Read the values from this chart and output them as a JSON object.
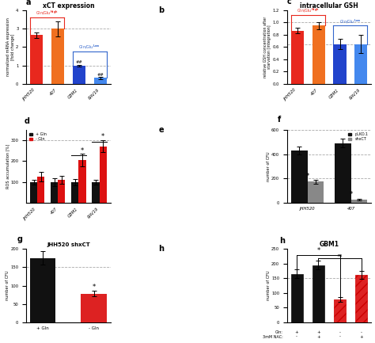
{
  "panel_a": {
    "title": "xCT expression",
    "ylabel": "normalized mRNA expression\n[fold change]",
    "categories": [
      "JHH520",
      "407",
      "GBM1",
      "RAV19"
    ],
    "values": [
      2.65,
      3.0,
      1.0,
      0.32
    ],
    "errors": [
      0.15,
      0.4,
      0.05,
      0.07
    ],
    "colors": [
      "#e8281e",
      "#f07020",
      "#2244cc",
      "#4488ee"
    ],
    "ylim": [
      0,
      4
    ],
    "yticks": [
      0,
      1,
      2,
      3,
      4
    ],
    "dashed_line_high": 3.0,
    "dashed_line_low": 1.0,
    "panel_label": "a"
  },
  "panel_c": {
    "title": "intracellular GSH",
    "ylabel": "relative GSH concentration after\nstarvation [integration]",
    "categories": [
      "JHH520",
      "407",
      "GBM1",
      "RAV19"
    ],
    "values": [
      0.87,
      0.95,
      0.65,
      0.65
    ],
    "errors": [
      0.04,
      0.06,
      0.08,
      0.15
    ],
    "colors": [
      "#e8281e",
      "#f07020",
      "#2244cc",
      "#4488ee"
    ],
    "ylim": [
      0,
      1.2
    ],
    "yticks": [
      0,
      0.2,
      0.4,
      0.6,
      0.8,
      1.0,
      1.2
    ],
    "dashed_line_high": 1.0,
    "dashed_line_low": 0.65,
    "panel_label": "c"
  },
  "panel_d": {
    "ylabel": "ROS accumulation [%]",
    "categories": [
      "JHH520",
      "407",
      "GBM1",
      "RAV19"
    ],
    "values_black": [
      100,
      100,
      100,
      100
    ],
    "values_red": [
      125,
      112,
      205,
      270
    ],
    "errors_black": [
      12,
      18,
      15,
      10
    ],
    "errors_red": [
      22,
      18,
      30,
      28
    ],
    "ylim": [
      0,
      350
    ],
    "yticks": [
      100,
      200,
      300
    ],
    "dashed_line": 300,
    "panel_label": "d"
  },
  "panel_f": {
    "ylabel": "number of CFU",
    "categories": [
      "JHH520",
      "407"
    ],
    "values_black": [
      430,
      490
    ],
    "values_gray": [
      175,
      30
    ],
    "errors_black": [
      30,
      35
    ],
    "errors_gray": [
      18,
      8
    ],
    "ylim": [
      0,
      600
    ],
    "yticks": [
      0,
      200,
      400,
      600
    ],
    "dashed_lines": [
      200,
      400,
      600
    ],
    "legend_black": "pLKO.1",
    "legend_gray": "shxCT",
    "panel_label": "f"
  },
  "panel_g": {
    "title": "JHH520 shxCT",
    "ylabel": "number of CFU",
    "categories": [
      "+ Gln",
      "- Gln"
    ],
    "values": [
      175,
      78
    ],
    "errors": [
      18,
      8
    ],
    "colors": [
      "#111111",
      "#dd2222"
    ],
    "ylim": [
      0,
      200
    ],
    "yticks": [
      0,
      50,
      100,
      150,
      200
    ],
    "dashed_line": 150,
    "panel_label": "g"
  },
  "panel_h": {
    "title": "GBM1",
    "ylabel": "number of CFU",
    "gin_labels": [
      "+",
      "+",
      "-",
      "-"
    ],
    "nac_labels": [
      "-",
      "+",
      "-",
      "+"
    ],
    "values": [
      165,
      195,
      78,
      162
    ],
    "errors": [
      14,
      14,
      9,
      14
    ],
    "colors": [
      "#111111",
      "#111111",
      "#dd2222",
      "#dd2222"
    ],
    "hatch": [
      false,
      false,
      true,
      true
    ],
    "ylim": [
      0,
      250
    ],
    "yticks": [
      0,
      50,
      100,
      150,
      200,
      250
    ],
    "dashed_line": 150,
    "panel_label": "h"
  },
  "label_color_red": "#e8281e",
  "label_color_blue": "#3366cc",
  "bg_color": "#ffffff"
}
